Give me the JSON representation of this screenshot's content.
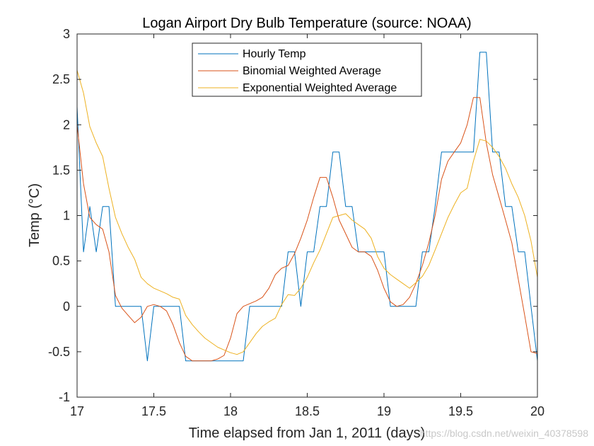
{
  "chart_data": {
    "type": "line",
    "title": "Logan Airport Dry Bulb Temperature (source: NOAA)",
    "xlabel": "Time elapsed from Jan 1, 2011 (days)",
    "ylabel": "Temp (°C)",
    "xlim": [
      17,
      20
    ],
    "ylim": [
      -1,
      3
    ],
    "xticks": [
      17,
      17.5,
      18,
      18.5,
      19,
      19.5,
      20
    ],
    "xtick_labels": [
      "17",
      "17.5",
      "18",
      "18.5",
      "19",
      "19.5",
      "20"
    ],
    "yticks": [
      -1,
      -0.5,
      0,
      0.5,
      1,
      1.5,
      2,
      2.5,
      3
    ],
    "ytick_labels": [
      "-1",
      "-0.5",
      "0",
      "0.5",
      "1",
      "1.5",
      "2",
      "2.5",
      "3"
    ],
    "legend_position": "top-center",
    "grid": false,
    "series": [
      {
        "name": "Hourly Temp",
        "color": "#0072bd",
        "x": [
          17.0,
          17.042,
          17.083,
          17.125,
          17.167,
          17.208,
          17.25,
          17.292,
          17.333,
          17.375,
          17.417,
          17.458,
          17.5,
          17.542,
          17.583,
          17.625,
          17.667,
          17.708,
          17.75,
          17.792,
          17.833,
          17.875,
          17.917,
          17.958,
          18.0,
          18.042,
          18.083,
          18.125,
          18.167,
          18.208,
          18.25,
          18.292,
          18.333,
          18.375,
          18.417,
          18.458,
          18.5,
          18.542,
          18.583,
          18.625,
          18.667,
          18.708,
          18.75,
          18.792,
          18.833,
          18.875,
          18.917,
          18.958,
          19.0,
          19.042,
          19.083,
          19.125,
          19.167,
          19.208,
          19.25,
          19.292,
          19.333,
          19.375,
          19.417,
          19.458,
          19.5,
          19.542,
          19.583,
          19.625,
          19.667,
          19.708,
          19.75,
          19.792,
          19.833,
          19.875,
          19.917,
          19.958,
          20.0
        ],
        "y": [
          2.2,
          0.6,
          1.1,
          0.6,
          1.1,
          1.1,
          0,
          0,
          0,
          0,
          0,
          -0.6,
          0,
          0,
          0,
          0,
          0,
          -0.6,
          -0.6,
          -0.6,
          -0.6,
          -0.6,
          -0.6,
          -0.6,
          -0.6,
          -0.6,
          -0.6,
          0,
          0,
          0,
          0,
          0,
          0,
          0.6,
          0.6,
          0,
          0.6,
          0.6,
          1.1,
          1.1,
          1.7,
          1.7,
          1.1,
          1.1,
          0.6,
          0.6,
          0.6,
          0.6,
          0.6,
          0,
          0,
          0,
          0,
          0,
          0.6,
          0.6,
          1.1,
          1.7,
          1.7,
          1.7,
          1.7,
          1.7,
          1.7,
          2.8,
          2.8,
          1.7,
          1.7,
          1.1,
          1.1,
          0.6,
          0.6,
          0,
          -0.6
        ]
      },
      {
        "name": "Binomial Weighted Average",
        "color": "#d95319",
        "x": [
          17.0,
          17.042,
          17.083,
          17.125,
          17.167,
          17.208,
          17.25,
          17.292,
          17.333,
          17.375,
          17.417,
          17.458,
          17.5,
          17.542,
          17.583,
          17.625,
          17.667,
          17.708,
          17.75,
          17.792,
          17.833,
          17.875,
          17.917,
          17.958,
          18.0,
          18.042,
          18.083,
          18.125,
          18.167,
          18.208,
          18.25,
          18.292,
          18.333,
          18.375,
          18.417,
          18.458,
          18.5,
          18.542,
          18.583,
          18.625,
          18.667,
          18.708,
          18.75,
          18.792,
          18.833,
          18.875,
          18.917,
          18.958,
          19.0,
          19.042,
          19.083,
          19.125,
          19.167,
          19.208,
          19.25,
          19.292,
          19.333,
          19.375,
          19.417,
          19.458,
          19.5,
          19.542,
          19.583,
          19.625,
          19.667,
          19.708,
          19.75,
          19.792,
          19.833,
          19.875,
          19.917,
          19.958,
          20.0
        ],
        "y": [
          2.0,
          1.35,
          0.98,
          0.9,
          0.85,
          0.6,
          0.12,
          -0.02,
          -0.1,
          -0.18,
          -0.12,
          0.0,
          0.02,
          0.0,
          -0.05,
          -0.2,
          -0.4,
          -0.55,
          -0.6,
          -0.6,
          -0.6,
          -0.6,
          -0.58,
          -0.54,
          -0.35,
          -0.08,
          0.0,
          0.03,
          0.06,
          0.1,
          0.2,
          0.35,
          0.42,
          0.45,
          0.58,
          0.75,
          0.95,
          1.2,
          1.42,
          1.42,
          1.2,
          0.95,
          0.8,
          0.65,
          0.6,
          0.6,
          0.55,
          0.4,
          0.2,
          0.05,
          0.0,
          0.02,
          0.1,
          0.25,
          0.45,
          0.7,
          1.0,
          1.4,
          1.6,
          1.7,
          1.8,
          2.0,
          2.3,
          2.3,
          1.8,
          1.45,
          1.2,
          0.95,
          0.7,
          0.3,
          -0.1,
          -0.5,
          -0.52
        ]
      },
      {
        "name": "Exponential Weighted Average",
        "color": "#edb120",
        "x": [
          17.0,
          17.042,
          17.083,
          17.125,
          17.167,
          17.208,
          17.25,
          17.292,
          17.333,
          17.375,
          17.417,
          17.458,
          17.5,
          17.542,
          17.583,
          17.625,
          17.667,
          17.708,
          17.75,
          17.792,
          17.833,
          17.875,
          17.917,
          17.958,
          18.0,
          18.042,
          18.083,
          18.125,
          18.167,
          18.208,
          18.25,
          18.292,
          18.333,
          18.375,
          18.417,
          18.458,
          18.5,
          18.542,
          18.583,
          18.625,
          18.667,
          18.708,
          18.75,
          18.792,
          18.833,
          18.875,
          18.917,
          18.958,
          19.0,
          19.042,
          19.083,
          19.125,
          19.167,
          19.208,
          19.25,
          19.292,
          19.333,
          19.375,
          19.417,
          19.458,
          19.5,
          19.542,
          19.583,
          19.625,
          19.667,
          19.708,
          19.75,
          19.792,
          19.833,
          19.875,
          19.917,
          19.958,
          20.0
        ],
        "y": [
          2.6,
          2.35,
          1.98,
          1.8,
          1.65,
          1.3,
          0.98,
          0.8,
          0.65,
          0.52,
          0.32,
          0.25,
          0.2,
          0.17,
          0.14,
          0.1,
          0.08,
          -0.1,
          -0.2,
          -0.28,
          -0.35,
          -0.4,
          -0.45,
          -0.48,
          -0.51,
          -0.53,
          -0.5,
          -0.4,
          -0.3,
          -0.22,
          -0.17,
          -0.13,
          0.02,
          0.13,
          0.12,
          0.2,
          0.32,
          0.48,
          0.62,
          0.8,
          0.98,
          1.0,
          1.02,
          0.95,
          0.9,
          0.85,
          0.75,
          0.55,
          0.42,
          0.35,
          0.3,
          0.25,
          0.2,
          0.26,
          0.33,
          0.45,
          0.62,
          0.8,
          0.98,
          1.12,
          1.25,
          1.3,
          1.6,
          1.84,
          1.82,
          1.75,
          1.65,
          1.52,
          1.35,
          1.2,
          1.0,
          0.72,
          0.32
        ]
      }
    ],
    "watermark": "https://blog.csdn.net/weixin_40378598"
  }
}
